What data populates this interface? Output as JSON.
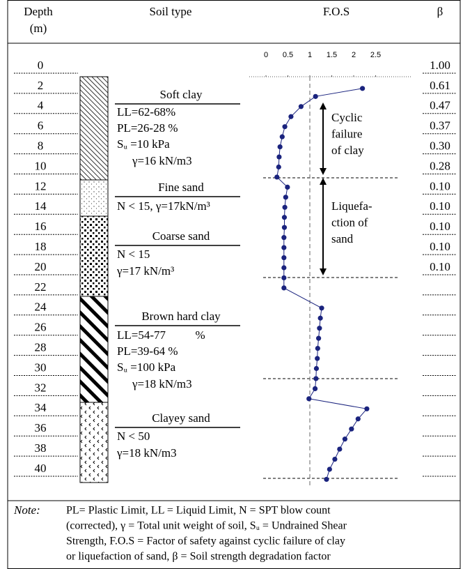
{
  "header": {
    "depth": [
      "Depth",
      "(m)"
    ],
    "soil": "Soil type",
    "fos": "F.O.S",
    "beta": "β"
  },
  "depths": [
    "0",
    "2",
    "4",
    "6",
    "8",
    "10",
    "12",
    "14",
    "16",
    "18",
    "20",
    "22",
    "24",
    "26",
    "28",
    "30",
    "32",
    "34",
    "36",
    "38",
    "40"
  ],
  "beta": [
    "1.00",
    "0.61",
    "0.47",
    "0.37",
    "0.30",
    "0.28",
    "0.10",
    "0.10",
    "0.10",
    "0.10",
    "0.10"
  ],
  "layers": [
    {
      "name": "Soft clay",
      "lines": [
        "LL=62-68%",
        "PL=26-28 %",
        "Sᵤ =10 kPa",
        "γ=16 kN/m3"
      ]
    },
    {
      "name": "Fine sand",
      "lines": [
        "N < 15, γ=17kN/m³"
      ]
    },
    {
      "name": "Coarse sand",
      "lines": [
        "N < 15",
        "γ=17 kN/m³"
      ]
    },
    {
      "name": "Brown hard clay",
      "lines": [
        "LL=54-77          %",
        "PL=39-64 %",
        "Sᵤ =100 kPa",
        "γ=18 kN/m3"
      ]
    },
    {
      "name": "Clayey sand",
      "lines": [
        "N < 50",
        "γ=18 kN/m3"
      ]
    }
  ],
  "chart_data": {
    "type": "line",
    "color": "#1a237e",
    "xlim": [
      0,
      2.5
    ],
    "xticks": [
      0,
      0.5,
      1,
      1.5,
      2,
      2.5
    ],
    "series": [
      {
        "color": "#1a237e",
        "depth": [
          2.2,
          3,
          4,
          5,
          6,
          7,
          8,
          9,
          10,
          11,
          12,
          13,
          14,
          15,
          16,
          17,
          18,
          19,
          20,
          21,
          22,
          24,
          25,
          26,
          27,
          28,
          29,
          30,
          31,
          32,
          33,
          34,
          35,
          36,
          37,
          38,
          39,
          40,
          41
        ],
        "values": [
          2.2,
          1.13,
          0.8,
          0.57,
          0.43,
          0.37,
          0.32,
          0.3,
          0.29,
          0.25,
          0.49,
          0.45,
          0.43,
          0.42,
          0.42,
          0.41,
          0.41,
          0.41,
          0.41,
          0.41,
          0.41,
          1.27,
          1.24,
          1.22,
          1.2,
          1.18,
          1.17,
          1.15,
          1.14,
          1.12,
          0.98,
          2.3,
          2.1,
          1.95,
          1.8,
          1.68,
          1.57,
          1.45,
          1.38
        ]
      }
    ],
    "annotations": [
      [
        "Cyclic",
        "failure",
        "of clay"
      ],
      [
        "Liquefa-",
        "ction of",
        "sand"
      ]
    ]
  },
  "note": {
    "label": "Note:",
    "lines": [
      "PL= Plastic Limit, LL = Liquid Limit, N = SPT blow count",
      "(corrected), γ = Total unit weight of soil, Sᵤ = Undrained Shear",
      "Strength, F.O.S = Factor of safety against cyclic failure of clay",
      "or liquefaction of sand, β = Soil strength degradation factor"
    ]
  }
}
